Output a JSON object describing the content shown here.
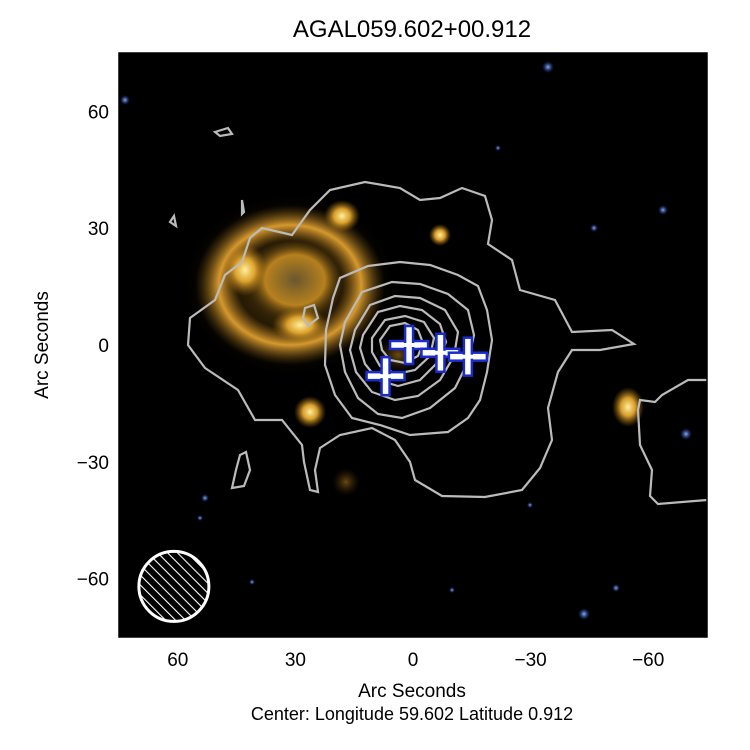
{
  "chart_data": {
    "type": "image",
    "title": "AGAL059.602+00.912",
    "xlabel": "Arc Seconds",
    "ylabel": "Arc Seconds",
    "subtitle": "Center:  Longitude 59.602 Latitude 0.912",
    "xlim": [
      75,
      -75
    ],
    "ylim": [
      -75,
      75
    ],
    "x_ticks": [
      60,
      30,
      0,
      -30,
      -60
    ],
    "x_tick_labels": [
      "60",
      "30",
      "0",
      "−30",
      "−60"
    ],
    "y_ticks": [
      60,
      30,
      0,
      -30,
      -60
    ],
    "y_tick_labels": [
      "60",
      "30",
      "0",
      "−30",
      "−60"
    ],
    "markers": [
      {
        "x": 7,
        "y": -8
      },
      {
        "x": 1,
        "y": 0
      },
      {
        "x": -7,
        "y": -2
      },
      {
        "x": -14,
        "y": -3
      }
    ],
    "beam": {
      "x": 61,
      "y": -62,
      "diameter_arcsec": 18
    },
    "colors": {
      "background": "#000000",
      "emission": "#e0a030",
      "contour": "#bbbbbb",
      "marker_fill": "#ffffff",
      "marker_edge": "#1a2ccc",
      "star": "#3a6ad0"
    }
  }
}
